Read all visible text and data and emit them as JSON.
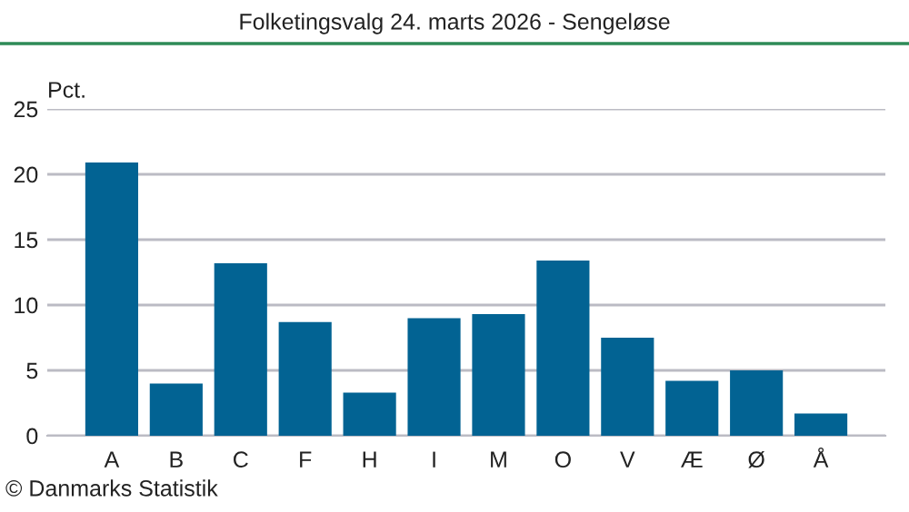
{
  "chart_data": {
    "type": "bar",
    "title": "Folketingsvalg 24. marts 2026 - Sengeløse",
    "ylabel": "Pct.",
    "categories": [
      "A",
      "B",
      "C",
      "F",
      "H",
      "I",
      "M",
      "O",
      "V",
      "Æ",
      "Ø",
      "Å"
    ],
    "values": [
      20.9,
      4.0,
      13.2,
      8.7,
      3.3,
      9.0,
      9.3,
      13.4,
      7.5,
      4.2,
      5.0,
      1.7
    ],
    "color": "#026393",
    "ylim": [
      0,
      25
    ],
    "yticks": [
      0,
      5,
      10,
      15,
      20,
      25
    ],
    "grid": "y",
    "annotations": [
      "© Danmarks Statistik"
    ]
  }
}
